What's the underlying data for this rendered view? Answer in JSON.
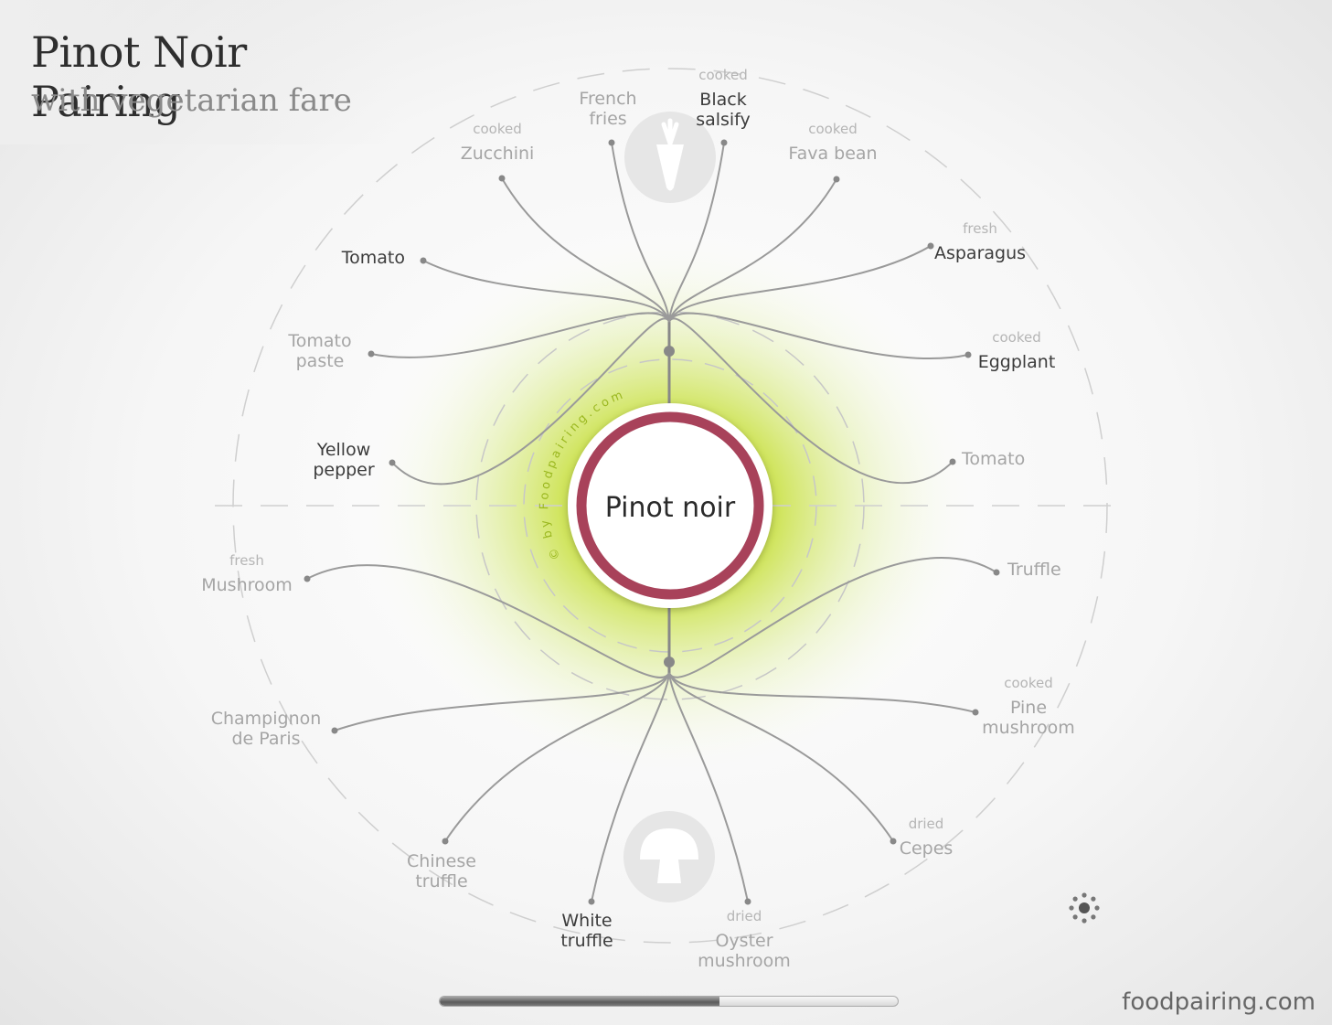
{
  "title": "Pinot Noir Pairing",
  "subtitle": "with vegetarian fare",
  "center_label": "Pinot noir",
  "watermark": "© by Foodpairing.com",
  "brand": "foodpairing.com",
  "progress": 0.61,
  "icons": {
    "top": "carrot-icon",
    "bottom": "mushroom-icon",
    "settings": "settings-gear-icon"
  },
  "colors": {
    "wine_ring": "#a8425a",
    "glow": "#b5d61c",
    "connector": "#9a9a9a",
    "dark_label": "#3c3c3c",
    "light_label": "#a5a5a5"
  },
  "top_branch": [
    {
      "qualifier": "cooked",
      "name": [
        "Black",
        "salsify"
      ],
      "tone": "dark"
    },
    {
      "qualifier": "",
      "name": [
        "French",
        "fries"
      ],
      "tone": "light"
    },
    {
      "qualifier": "cooked",
      "name": [
        "Zucchini"
      ],
      "tone": "light"
    },
    {
      "qualifier": "cooked",
      "name": [
        "Fava bean"
      ],
      "tone": "light"
    },
    {
      "qualifier": "",
      "name": [
        "Tomato"
      ],
      "tone": "dark"
    },
    {
      "qualifier": "fresh",
      "name": [
        "Asparagus"
      ],
      "tone": "dark"
    },
    {
      "qualifier": "",
      "name": [
        "Tomato",
        "paste"
      ],
      "tone": "light"
    },
    {
      "qualifier": "cooked",
      "name": [
        "Eggplant"
      ],
      "tone": "dark"
    },
    {
      "qualifier": "",
      "name": [
        "Yellow",
        "pepper"
      ],
      "tone": "dark"
    },
    {
      "qualifier": "",
      "name": [
        "Tomato"
      ],
      "tone": "light"
    }
  ],
  "bottom_branch": [
    {
      "qualifier": "fresh",
      "name": [
        "Mushroom"
      ],
      "tone": "light"
    },
    {
      "qualifier": "",
      "name": [
        "Truffle"
      ],
      "tone": "light"
    },
    {
      "qualifier": "",
      "name": [
        "Champignon",
        "de Paris"
      ],
      "tone": "light"
    },
    {
      "qualifier": "cooked",
      "name": [
        "Pine",
        "mushroom"
      ],
      "tone": "light"
    },
    {
      "qualifier": "",
      "name": [
        "Chinese",
        "truffle"
      ],
      "tone": "light"
    },
    {
      "qualifier": "dried",
      "name": [
        "Cepes"
      ],
      "tone": "light"
    },
    {
      "qualifier": "",
      "name": [
        "White",
        "truffle"
      ],
      "tone": "dark"
    },
    {
      "qualifier": "dried",
      "name": [
        "Oyster",
        "mushroom"
      ],
      "tone": "light"
    }
  ]
}
